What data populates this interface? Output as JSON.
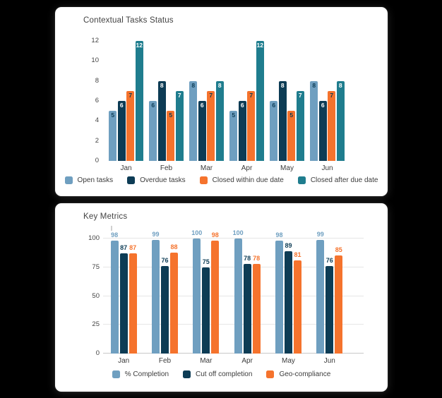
{
  "theme": {
    "page_background": "#000000",
    "card_background": "#ffffff",
    "grid_color": "#e6e6e6",
    "baseline_color": "#c8c8c8",
    "title_color": "#424242",
    "tick_color": "#444444"
  },
  "chart_data": [
    {
      "type": "bar",
      "title": "Contextual Tasks Status",
      "categories": [
        "Jan",
        "Feb",
        "Mar",
        "Apr",
        "May",
        "Jun"
      ],
      "series": [
        {
          "name": "Open tasks",
          "color": "#6f9fc0",
          "label_color": "#0d3c55",
          "values": [
            5,
            6,
            8,
            5,
            6,
            8
          ]
        },
        {
          "name": "Overdue tasks",
          "color": "#0d3c55",
          "label_color": "#ffffff",
          "values": [
            6,
            8,
            6,
            6,
            8,
            6
          ]
        },
        {
          "name": "Closed within due date",
          "color": "#f5732d",
          "label_color": "#0d3c55",
          "values": [
            7,
            5,
            7,
            7,
            5,
            7
          ]
        },
        {
          "name": "Closed after due date",
          "color": "#1f7d8e",
          "label_color": "#ffffff",
          "values": [
            12,
            7,
            8,
            12,
            7,
            8
          ]
        }
      ],
      "ylim": [
        0,
        12
      ],
      "yticks": [
        0,
        2,
        4,
        6,
        8,
        10,
        12
      ],
      "grid": false,
      "value_labels": "inside-top",
      "legend_position": "bottom"
    },
    {
      "type": "bar",
      "title": "Key Metrics",
      "categories": [
        "Jan",
        "Feb",
        "Mar",
        "Apr",
        "May",
        "Jun"
      ],
      "series": [
        {
          "name": "% Completion",
          "color": "#6f9fc0",
          "values": [
            98,
            99,
            100,
            100,
            98,
            99
          ]
        },
        {
          "name": "Cut off completion",
          "color": "#0d3c55",
          "values": [
            87,
            76,
            75,
            78,
            89,
            76
          ]
        },
        {
          "name": "Geo-compliance",
          "color": "#f5732d",
          "values": [
            87,
            88,
            98,
            78,
            81,
            85
          ]
        }
      ],
      "ylim": [
        0,
        100
      ],
      "yticks": [
        0,
        25,
        50,
        75,
        100
      ],
      "grid": true,
      "value_labels": "above",
      "legend_position": "bottom"
    }
  ]
}
